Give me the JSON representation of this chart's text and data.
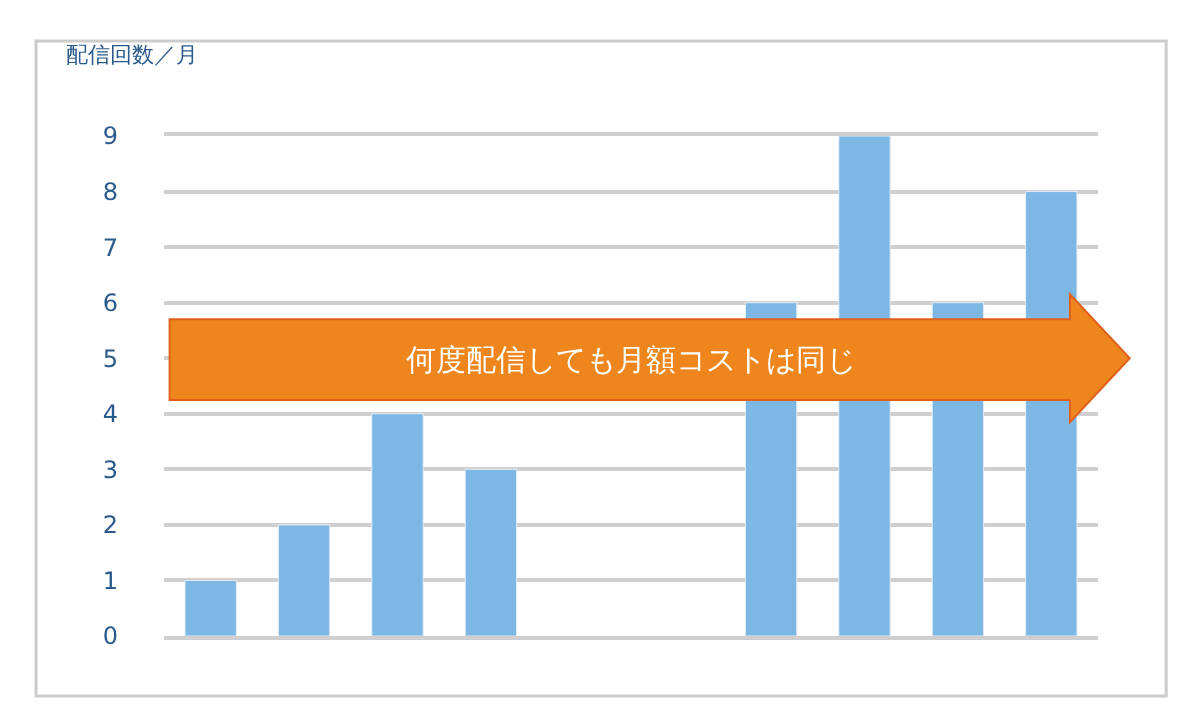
{
  "chart_data": {
    "type": "bar",
    "ylabel": "配信回数／月",
    "categories": [
      null,
      null,
      null,
      null,
      null,
      null,
      null,
      null,
      null,
      null
    ],
    "values": [
      1,
      2,
      4,
      3,
      null,
      null,
      6,
      9,
      6,
      8
    ],
    "color": "#7db8e4",
    "ylim": [
      0,
      9
    ],
    "yticks": [
      0,
      1,
      2,
      3,
      4,
      5,
      6,
      7,
      8,
      9
    ],
    "grid": "y",
    "annotations": [
      "何度配信しても月額コストは同じ"
    ]
  }
}
